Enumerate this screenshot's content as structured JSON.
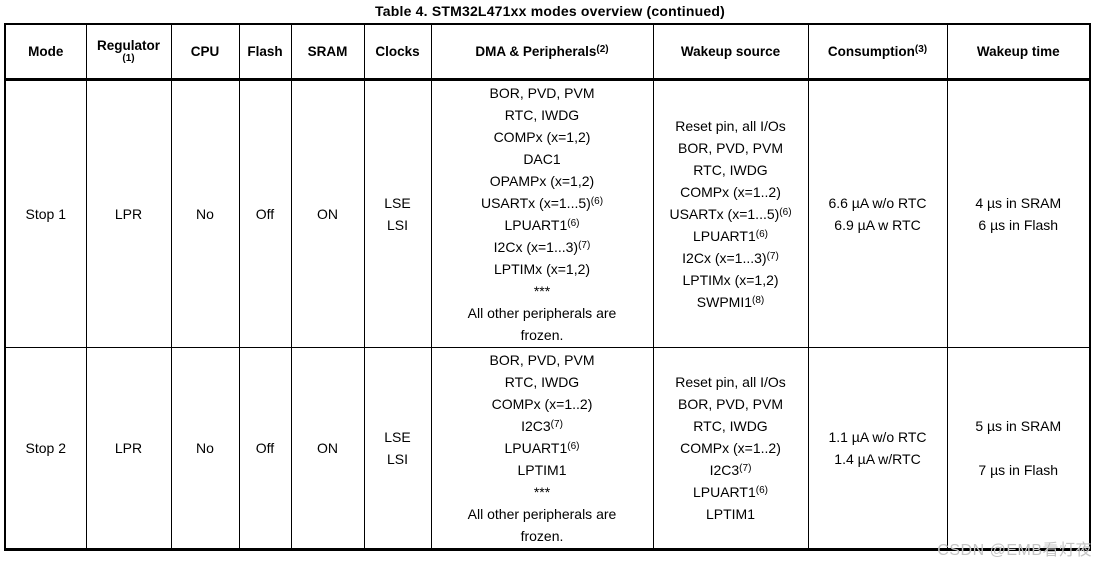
{
  "title": "Table 4. STM32L471xx modes overview (continued)",
  "watermark": "CSDN @EMB看灯夜",
  "colors": {
    "border": "#000000",
    "text": "#000000",
    "background": "#ffffff",
    "watermark": "#c4c4c4"
  },
  "table": {
    "columns": [
      {
        "label": "Mode",
        "sup": ""
      },
      {
        "label": "Regulator",
        "sup": "(1)"
      },
      {
        "label": "CPU",
        "sup": ""
      },
      {
        "label": "Flash",
        "sup": ""
      },
      {
        "label": "SRAM",
        "sup": ""
      },
      {
        "label": "Clocks",
        "sup": ""
      },
      {
        "label": "DMA & Peripherals",
        "sup": "(2)"
      },
      {
        "label": "Wakeup source",
        "sup": ""
      },
      {
        "label": "Consumption",
        "sup": "(3)"
      },
      {
        "label": "Wakeup time",
        "sup": ""
      }
    ],
    "rows": [
      {
        "mode": "Stop 1",
        "regulator": "LPR",
        "cpu": "No",
        "flash": "Off",
        "sram": "ON",
        "clocks": [
          "LSE",
          "LSI"
        ],
        "dma_peripherals": [
          "BOR, PVD, PVM",
          "RTC, IWDG",
          "COMPx (x=1,2)",
          "DAC1",
          "OPAMPx (x=1,2)",
          "USARTx (x=1...5)^(6)",
          "LPUART1^(6)",
          "I2Cx (x=1...3)^(7)",
          "LPTIMx (x=1,2)",
          "***",
          "All other peripherals are",
          "frozen."
        ],
        "wakeup_source": [
          "Reset pin, all I/Os",
          "BOR, PVD, PVM",
          "RTC, IWDG",
          "COMPx (x=1..2)",
          "USARTx (x=1...5)^(6)",
          "LPUART1^(6)",
          "I2Cx (x=1...3)^(7)",
          "LPTIMx (x=1,2)",
          "SWPMI1^(8)"
        ],
        "consumption": [
          "6.6 µA w/o RTC",
          "6.9 µA w RTC"
        ],
        "wakeup_time": [
          "4 µs in SRAM",
          "6 µs in Flash"
        ]
      },
      {
        "mode": "Stop 2",
        "regulator": "LPR",
        "cpu": "No",
        "flash": "Off",
        "sram": "ON",
        "clocks": [
          "LSE",
          "LSI"
        ],
        "dma_peripherals": [
          "BOR, PVD, PVM",
          "RTC, IWDG",
          "COMPx (x=1..2)",
          "I2C3^(7)",
          "LPUART1^(6)",
          "LPTIM1",
          "***",
          "All other peripherals are",
          "frozen."
        ],
        "wakeup_source": [
          "Reset pin, all I/Os",
          "BOR, PVD, PVM",
          "RTC, IWDG",
          "COMPx (x=1..2)",
          "I2C3^(7)",
          "LPUART1^(6)",
          "LPTIM1"
        ],
        "consumption": [
          "1.1 µA w/o RTC",
          "1.4 µA w/RTC"
        ],
        "wakeup_time": [
          "5 µs in SRAM",
          "",
          "7 µs in Flash"
        ]
      }
    ]
  }
}
